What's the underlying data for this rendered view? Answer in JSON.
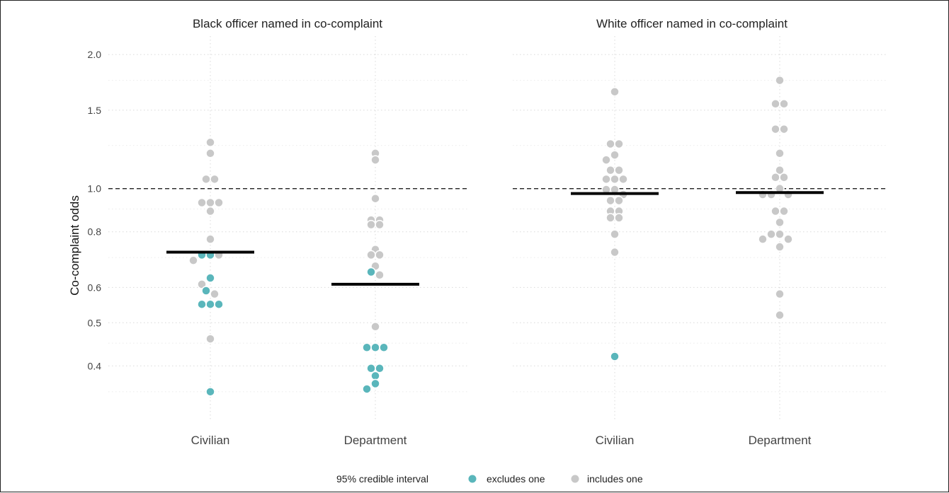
{
  "chart_data": {
    "type": "scatter",
    "y_axis": {
      "label": "Co-complaint odds",
      "scale": "log",
      "ticks": [
        0.4,
        0.5,
        0.6,
        0.8,
        1.0,
        1.5,
        2.0
      ],
      "tick_labels": [
        "0.4",
        "0.5",
        "0.6",
        "0.8",
        "1.0",
        "1.5",
        "2.0"
      ],
      "range": [
        0.3,
        2.2
      ]
    },
    "categories": [
      "Civilian",
      "Department"
    ],
    "reference_line": 1.0,
    "legend": {
      "title": "95% credible interval",
      "position": "bottom",
      "items": [
        {
          "label": "excludes one",
          "color": "#5ab6bb"
        },
        {
          "label": "includes one",
          "color": "#c8c8c8"
        }
      ]
    },
    "panels": [
      {
        "title": "Black officer named in co-complaint",
        "groups": [
          {
            "category": "Civilian",
            "median": 0.72,
            "points": [
              {
                "y": 1.27,
                "excludes_one": false
              },
              {
                "y": 1.2,
                "excludes_one": false
              },
              {
                "y": 1.05,
                "excludes_one": false
              },
              {
                "y": 1.05,
                "excludes_one": false
              },
              {
                "y": 0.93,
                "excludes_one": false
              },
              {
                "y": 0.93,
                "excludes_one": false
              },
              {
                "y": 0.93,
                "excludes_one": false
              },
              {
                "y": 0.89,
                "excludes_one": false
              },
              {
                "y": 0.77,
                "excludes_one": false
              },
              {
                "y": 0.71,
                "excludes_one": true
              },
              {
                "y": 0.71,
                "excludes_one": true
              },
              {
                "y": 0.71,
                "excludes_one": false
              },
              {
                "y": 0.69,
                "excludes_one": false
              },
              {
                "y": 0.63,
                "excludes_one": true
              },
              {
                "y": 0.61,
                "excludes_one": false
              },
              {
                "y": 0.59,
                "excludes_one": true
              },
              {
                "y": 0.58,
                "excludes_one": false
              },
              {
                "y": 0.55,
                "excludes_one": true
              },
              {
                "y": 0.55,
                "excludes_one": true
              },
              {
                "y": 0.55,
                "excludes_one": true
              },
              {
                "y": 0.46,
                "excludes_one": false
              },
              {
                "y": 0.35,
                "excludes_one": true
              }
            ]
          },
          {
            "category": "Department",
            "median": 0.61,
            "points": [
              {
                "y": 1.2,
                "excludes_one": false
              },
              {
                "y": 1.16,
                "excludes_one": false
              },
              {
                "y": 0.95,
                "excludes_one": false
              },
              {
                "y": 0.85,
                "excludes_one": false
              },
              {
                "y": 0.85,
                "excludes_one": false
              },
              {
                "y": 0.83,
                "excludes_one": false
              },
              {
                "y": 0.83,
                "excludes_one": false
              },
              {
                "y": 0.73,
                "excludes_one": false
              },
              {
                "y": 0.71,
                "excludes_one": false
              },
              {
                "y": 0.71,
                "excludes_one": false
              },
              {
                "y": 0.67,
                "excludes_one": false
              },
              {
                "y": 0.65,
                "excludes_one": true
              },
              {
                "y": 0.64,
                "excludes_one": false
              },
              {
                "y": 0.49,
                "excludes_one": false
              },
              {
                "y": 0.44,
                "excludes_one": true
              },
              {
                "y": 0.44,
                "excludes_one": true
              },
              {
                "y": 0.44,
                "excludes_one": true
              },
              {
                "y": 0.395,
                "excludes_one": true
              },
              {
                "y": 0.395,
                "excludes_one": true
              },
              {
                "y": 0.38,
                "excludes_one": true
              },
              {
                "y": 0.365,
                "excludes_one": true
              },
              {
                "y": 0.355,
                "excludes_one": true
              }
            ]
          }
        ]
      },
      {
        "title": "White officer named in co-complaint",
        "groups": [
          {
            "category": "Civilian",
            "median": 0.975,
            "points": [
              {
                "y": 1.65,
                "excludes_one": false
              },
              {
                "y": 1.26,
                "excludes_one": false
              },
              {
                "y": 1.26,
                "excludes_one": false
              },
              {
                "y": 1.19,
                "excludes_one": false
              },
              {
                "y": 1.16,
                "excludes_one": false
              },
              {
                "y": 1.1,
                "excludes_one": false
              },
              {
                "y": 1.1,
                "excludes_one": false
              },
              {
                "y": 1.05,
                "excludes_one": false
              },
              {
                "y": 1.05,
                "excludes_one": false
              },
              {
                "y": 1.05,
                "excludes_one": false
              },
              {
                "y": 0.995,
                "excludes_one": false
              },
              {
                "y": 0.995,
                "excludes_one": false
              },
              {
                "y": 0.97,
                "excludes_one": false
              },
              {
                "y": 0.94,
                "excludes_one": false
              },
              {
                "y": 0.94,
                "excludes_one": false
              },
              {
                "y": 0.89,
                "excludes_one": false
              },
              {
                "y": 0.89,
                "excludes_one": false
              },
              {
                "y": 0.86,
                "excludes_one": false
              },
              {
                "y": 0.86,
                "excludes_one": false
              },
              {
                "y": 0.79,
                "excludes_one": false
              },
              {
                "y": 0.72,
                "excludes_one": false
              },
              {
                "y": 0.42,
                "excludes_one": true
              }
            ]
          },
          {
            "category": "Department",
            "median": 0.98,
            "points": [
              {
                "y": 1.75,
                "excludes_one": false
              },
              {
                "y": 1.55,
                "excludes_one": false
              },
              {
                "y": 1.55,
                "excludes_one": false
              },
              {
                "y": 1.36,
                "excludes_one": false
              },
              {
                "y": 1.36,
                "excludes_one": false
              },
              {
                "y": 1.2,
                "excludes_one": false
              },
              {
                "y": 1.1,
                "excludes_one": false
              },
              {
                "y": 1.06,
                "excludes_one": false
              },
              {
                "y": 1.06,
                "excludes_one": false
              },
              {
                "y": 1.0,
                "excludes_one": false
              },
              {
                "y": 0.97,
                "excludes_one": false
              },
              {
                "y": 0.97,
                "excludes_one": false
              },
              {
                "y": 0.97,
                "excludes_one": false
              },
              {
                "y": 0.89,
                "excludes_one": false
              },
              {
                "y": 0.89,
                "excludes_one": false
              },
              {
                "y": 0.84,
                "excludes_one": false
              },
              {
                "y": 0.79,
                "excludes_one": false
              },
              {
                "y": 0.79,
                "excludes_one": false
              },
              {
                "y": 0.77,
                "excludes_one": false
              },
              {
                "y": 0.77,
                "excludes_one": false
              },
              {
                "y": 0.74,
                "excludes_one": false
              },
              {
                "y": 0.58,
                "excludes_one": false
              },
              {
                "y": 0.52,
                "excludes_one": false
              }
            ]
          }
        ]
      }
    ]
  }
}
